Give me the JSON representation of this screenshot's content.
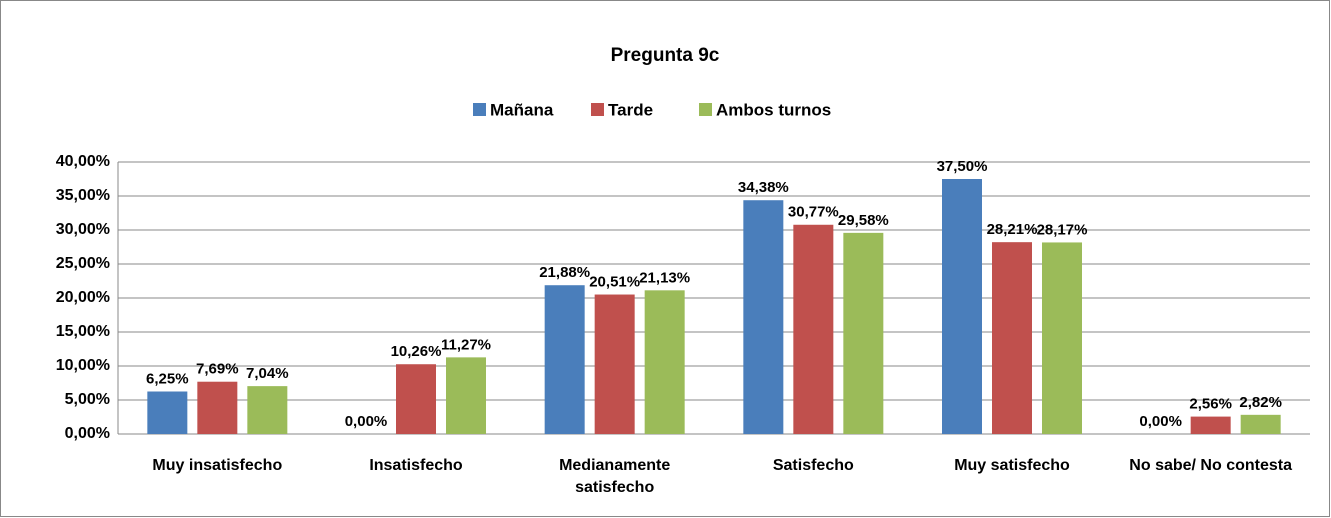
{
  "chart_data": {
    "type": "bar",
    "title": "Pregunta 9c",
    "categories": [
      "Muy insatisfecho",
      "Insatisfecho",
      "Medianamente satisfecho",
      "Satisfecho",
      "Muy satisfecho",
      "No sabe/ No contesta"
    ],
    "series": [
      {
        "name": "Mañana",
        "color": "#4a7ebb",
        "values": [
          6.25,
          0,
          21.88,
          34.38,
          37.5,
          0
        ],
        "value_labels": [
          "6,25%",
          "0,00%",
          "21,88%",
          "34,38%",
          "37,50%",
          "0,00%"
        ]
      },
      {
        "name": "Tarde",
        "color": "#c0504d",
        "values": [
          7.69,
          10.26,
          20.51,
          30.77,
          28.21,
          2.56
        ],
        "value_labels": [
          "7,69%",
          "10,26%",
          "20,51%",
          "30,77%",
          "28,21%",
          "2,56%"
        ]
      },
      {
        "name": "Ambos turnos",
        "color": "#9bbb59",
        "values": [
          7.04,
          11.27,
          21.13,
          29.58,
          28.17,
          2.82
        ],
        "value_labels": [
          "7,04%",
          "11,27%",
          "21,13%",
          "29,58%",
          "28,17%",
          "2,82%"
        ]
      }
    ],
    "ylim": [
      0,
      40
    ],
    "yticks": [
      {
        "value": 0,
        "label": "0,00%"
      },
      {
        "value": 5,
        "label": "5,00%"
      },
      {
        "value": 10,
        "label": "10,00%"
      },
      {
        "value": 15,
        "label": "15,00%"
      },
      {
        "value": 20,
        "label": "20,00%"
      },
      {
        "value": 25,
        "label": "25,00%"
      },
      {
        "value": 30,
        "label": "30,00%"
      },
      {
        "value": 35,
        "label": "35,00%"
      },
      {
        "value": 40,
        "label": "40,00%"
      }
    ],
    "grid": true,
    "legend": "top"
  }
}
